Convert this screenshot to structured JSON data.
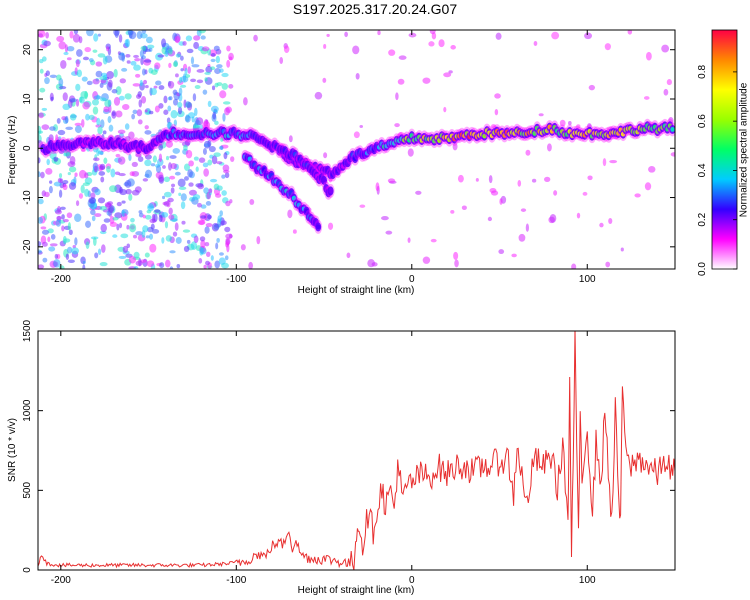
{
  "title": "S197.2025.317.20.24.G07",
  "chart_data": [
    {
      "type": "heatmap",
      "name": "spectrogram",
      "xlabel": "Height of straight line (km)",
      "ylabel": "Frequency (Hz)",
      "xlim": [
        -213,
        150
      ],
      "ylim": [
        -24.5,
        24
      ],
      "xticks": [
        -200,
        -100,
        0,
        100
      ],
      "yticks": [
        -20,
        -10,
        0,
        10,
        20
      ],
      "colorbar": {
        "label": "Normalized spectral amplitude",
        "range": [
          0,
          0.97
        ],
        "ticks": [
          0.0,
          0.2,
          0.4,
          0.6,
          0.8
        ],
        "tick_labels": [
          "0.0",
          "0.2",
          "0.4",
          "0.6",
          "0.8"
        ],
        "colors": [
          "#ffffff",
          "#ff00ff",
          "#3300ff",
          "#00ccff",
          "#00ff66",
          "#99ff00",
          "#ffff00",
          "#ff8800",
          "#ff0044"
        ]
      },
      "series": [
        {
          "name": "main-trace",
          "x": [
            -210,
            -190,
            -170,
            -150,
            -140,
            -120,
            -100,
            -85,
            -70,
            -55,
            -45,
            -35,
            -20,
            -10,
            0,
            20,
            40,
            60,
            80,
            90,
            100,
            115,
            130,
            150
          ],
          "y": [
            0,
            1,
            1,
            0,
            3,
            3,
            3,
            2,
            -2,
            -4,
            -5,
            -2,
            0,
            1,
            2,
            2,
            3,
            3,
            4,
            3,
            3,
            3,
            4,
            4
          ],
          "amplitude": [
            0.25,
            0.2,
            0.2,
            0.2,
            0.3,
            0.3,
            0.35,
            0.25,
            0.25,
            0.2,
            0.2,
            0.25,
            0.35,
            0.5,
            0.6,
            0.75,
            0.8,
            0.75,
            0.7,
            0.6,
            0.75,
            0.7,
            0.6,
            0.5
          ]
        },
        {
          "name": "descending-trace",
          "x": [
            -95,
            -80,
            -70,
            -60,
            -52
          ],
          "y": [
            -2,
            -6,
            -9,
            -13,
            -17
          ],
          "amplitude": [
            0.3,
            0.3,
            0.35,
            0.3,
            0.3
          ]
        },
        {
          "name": "secondary-trace",
          "x": [
            -75,
            -65,
            -50,
            -45
          ],
          "y": [
            0,
            -2,
            -7,
            -10
          ],
          "amplitude": [
            0.2,
            0.25,
            0.2,
            0.2
          ]
        }
      ]
    },
    {
      "type": "line",
      "name": "snr",
      "xlabel": "Height of straight line (km)",
      "ylabel": "SNR (10 * v/v)",
      "xlim": [
        -213,
        150
      ],
      "ylim": [
        0,
        1500
      ],
      "xticks": [
        -200,
        -100,
        0,
        100
      ],
      "yticks": [
        0,
        500,
        1000,
        1500
      ],
      "color": "#e83030",
      "x": [
        -213,
        -211,
        -208,
        -200,
        -180,
        -160,
        -140,
        -120,
        -105,
        -95,
        -88,
        -83,
        -80,
        -76,
        -73,
        -70,
        -68,
        -66,
        -64,
        -60,
        -56,
        -50,
        -44,
        -40,
        -36,
        -33,
        -32,
        -31,
        -30,
        -28,
        -25,
        -22,
        -20,
        -17,
        -15,
        -12,
        -10,
        -8,
        -5,
        -3,
        0,
        5,
        10,
        15,
        20,
        25,
        30,
        35,
        40,
        45,
        50,
        55,
        58,
        60,
        62,
        65,
        70,
        75,
        80,
        83,
        86,
        89,
        90,
        91,
        92,
        93,
        94,
        95,
        96,
        97,
        100,
        103,
        105,
        108,
        110,
        112,
        114,
        116,
        118,
        119,
        120,
        122,
        125,
        130,
        135,
        140,
        145,
        148,
        150
      ],
      "y": [
        30,
        100,
        40,
        30,
        30,
        30,
        30,
        30,
        40,
        55,
        100,
        85,
        150,
        170,
        160,
        260,
        130,
        200,
        110,
        80,
        70,
        70,
        60,
        50,
        40,
        30,
        250,
        240,
        300,
        160,
        350,
        250,
        380,
        520,
        400,
        500,
        380,
        680,
        420,
        520,
        550,
        600,
        580,
        650,
        600,
        650,
        660,
        610,
        650,
        660,
        680,
        700,
        450,
        800,
        650,
        400,
        700,
        650,
        720,
        500,
        800,
        300,
        1150,
        100,
        600,
        1550,
        700,
        180,
        1000,
        600,
        900,
        350,
        800,
        550,
        1000,
        650,
        300,
        1000,
        450,
        260,
        1200,
        700,
        650,
        700,
        650,
        600,
        700,
        600,
        620
      ]
    }
  ]
}
